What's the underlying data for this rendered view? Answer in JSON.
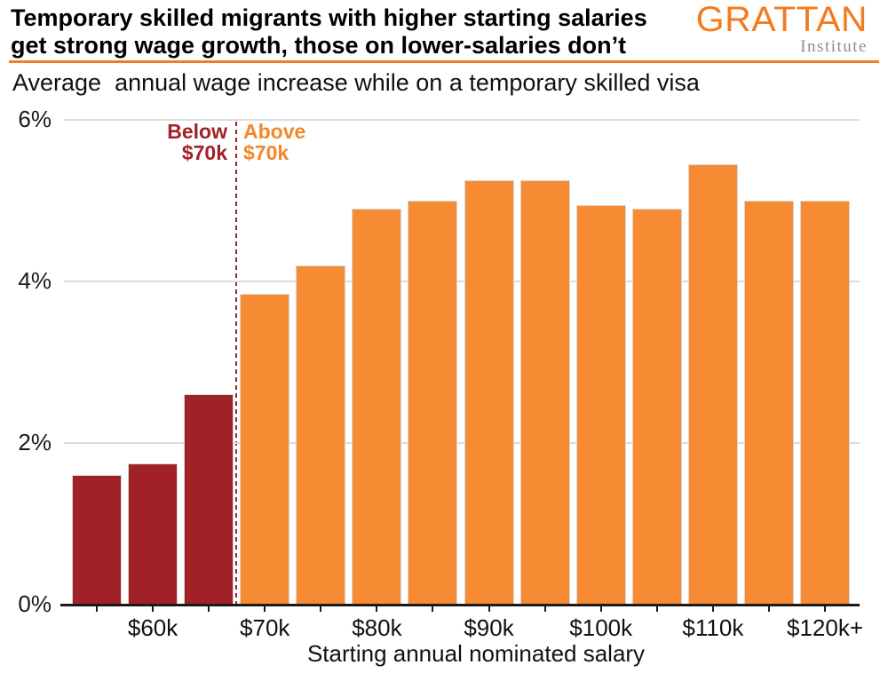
{
  "header": {
    "title_line1": "Temporary skilled migrants with higher starting salaries",
    "title_line2": "get strong wage growth, those on lower-salaries don’t",
    "logo": {
      "wordmark": "GRATTAN",
      "sub": "Institute"
    }
  },
  "colors": {
    "below_red": "#A02226",
    "above_orange": "#F68B33",
    "logo_orange": "#F47B20",
    "grid_gray": "#DCDCDC",
    "axis_black": "#1A1A1A",
    "institute_gray": "#8C8C8C"
  },
  "chart_data": {
    "type": "bar",
    "title": "Average  annual wage increase while on a temporary skilled visa",
    "xlabel": "Starting annual nominated salary",
    "ylabel": "",
    "ylim": [
      0,
      6
    ],
    "grid": "horizontal-gridlines",
    "legend_position": "none",
    "yticks": [
      {
        "value": 0,
        "label": "0%"
      },
      {
        "value": 2,
        "label": "2%"
      },
      {
        "value": 4,
        "label": "4%"
      },
      {
        "value": 6,
        "label": "6%"
      }
    ],
    "categories": [
      "",
      "$60k",
      "",
      "$70k",
      "",
      "$80k",
      "",
      "$90k",
      "",
      "$100k",
      "",
      "$110k",
      "",
      "$120k+"
    ],
    "values": [
      1.6,
      1.75,
      2.6,
      3.85,
      4.2,
      4.9,
      5.0,
      5.25,
      5.25,
      4.95,
      4.9,
      5.45,
      5.0,
      5.0
    ],
    "groups": [
      "below",
      "below",
      "below",
      "above",
      "above",
      "above",
      "above",
      "above",
      "above",
      "above",
      "above",
      "above",
      "above",
      "above"
    ],
    "group_colors": {
      "below": "#A02226",
      "above": "#F68B33"
    },
    "threshold": {
      "between_bar_indices": [
        2,
        3
      ],
      "below_label": [
        "Below",
        "$70k"
      ],
      "above_label": [
        "Above",
        "$70k"
      ]
    }
  }
}
